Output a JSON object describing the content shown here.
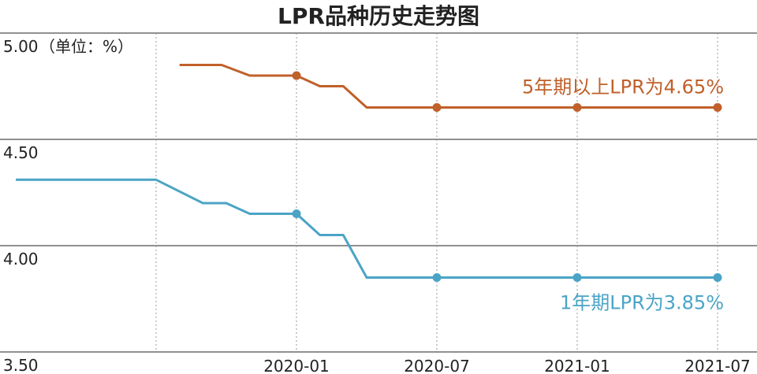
{
  "chart_data": {
    "type": "line",
    "title": "LPR品种历史走势图",
    "unit_label": "（单位：%）",
    "xlabel": "",
    "ylabel": "",
    "ylim": [
      3.5,
      5.0
    ],
    "yticks": [
      "5.00",
      "4.50",
      "4.00",
      "3.50"
    ],
    "ytick_values": [
      5.0,
      4.5,
      4.0,
      3.5
    ],
    "x_range": [
      "2019-01",
      "2021-07"
    ],
    "xticks": [
      "2020-01",
      "2020-07",
      "2021-01",
      "2021-07"
    ],
    "xtick_values": [
      12,
      18,
      24,
      30
    ],
    "vgrid_extra": [
      6
    ],
    "series": [
      {
        "name": "5年期以上LPR",
        "label": "5年期以上LPR为4.65%",
        "color": "#c0602a",
        "x": [
          7.0,
          8.8,
          10.0,
          11.0,
          12.0,
          13.0,
          14.0,
          15.0,
          18.0,
          24.0,
          30.0
        ],
        "values": [
          4.85,
          4.85,
          4.8,
          4.8,
          4.8,
          4.75,
          4.75,
          4.65,
          4.65,
          4.65,
          4.65
        ],
        "markers_at": [
          12,
          18,
          24,
          30
        ]
      },
      {
        "name": "1年期LPR",
        "label": "1年期LPR为3.85%",
        "color": "#4ba4c6",
        "x": [
          0.0,
          6.0,
          8.0,
          9.0,
          10.0,
          11.0,
          12.0,
          13.0,
          14.0,
          15.0,
          18.0,
          24.0,
          30.0
        ],
        "values": [
          4.31,
          4.31,
          4.2,
          4.2,
          4.15,
          4.15,
          4.15,
          4.05,
          4.05,
          3.85,
          3.85,
          3.85,
          3.85
        ],
        "markers_at": [
          12,
          18,
          24,
          30
        ]
      }
    ]
  }
}
